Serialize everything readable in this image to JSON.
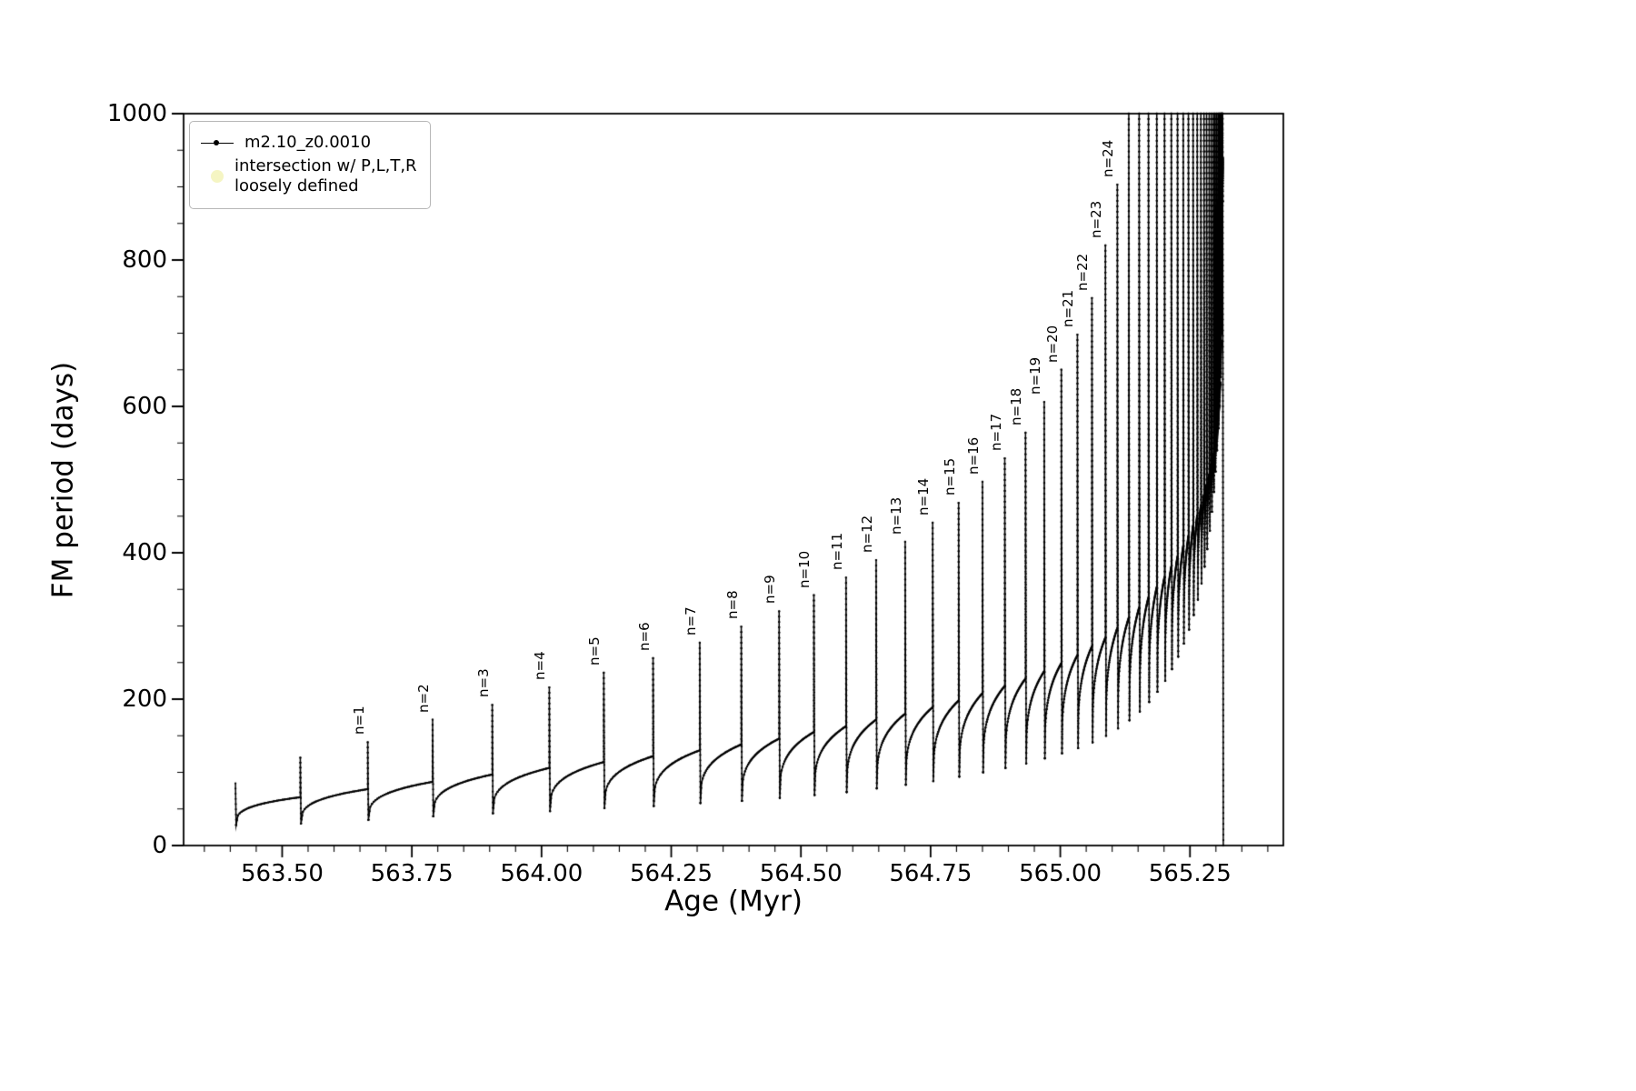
{
  "figure": {
    "background": "#ffffff",
    "axis_color": "#000000",
    "series_color": "#000000"
  },
  "legend": {
    "entries": [
      {
        "label": "m2.10_z0.0010",
        "type": "line-dot",
        "color": "#000000"
      },
      {
        "line1": "intersection w/ P,L,T,R",
        "line2": "loosely defined",
        "type": "dot",
        "color": "#f5f5c3"
      }
    ]
  },
  "chart_data": {
    "type": "line",
    "title": "",
    "xlabel": "Age (Myr)",
    "ylabel": "FM period (days)",
    "xlim": [
      563.31,
      565.43
    ],
    "ylim": [
      0,
      1000
    ],
    "grid": false,
    "legend_position": "upper left",
    "x_major_ticks": [
      563.5,
      563.75,
      564.0,
      564.25,
      564.5,
      564.75,
      565.0,
      565.25
    ],
    "x_tick_labels": [
      "563.50",
      "563.75",
      "564.00",
      "564.25",
      "564.50",
      "564.75",
      "565.00",
      "565.25"
    ],
    "x_minor_step": 0.05,
    "y_major_ticks": [
      0,
      200,
      400,
      600,
      800,
      1000
    ],
    "y_tick_labels": [
      "0",
      "200",
      "400",
      "600",
      "800",
      "1000"
    ],
    "y_minor_step": 50,
    "series_name": "m2.10_z0.0010",
    "spikes": [
      {
        "x": 563.41,
        "base": null,
        "peak": 85,
        "low": 28,
        "label": null
      },
      {
        "x": 563.535,
        "base": 66,
        "peak": 120,
        "low": 30,
        "label": null
      },
      {
        "x": 563.665,
        "base": 77,
        "peak": 141,
        "low": 35,
        "label": "n=1"
      },
      {
        "x": 563.79,
        "base": 87,
        "peak": 172,
        "low": 40,
        "label": "n=2"
      },
      {
        "x": 563.905,
        "base": 97,
        "peak": 192,
        "low": 44,
        "label": "n=3"
      },
      {
        "x": 564.015,
        "base": 106,
        "peak": 216,
        "low": 47,
        "label": "n=4"
      },
      {
        "x": 564.12,
        "base": 114,
        "peak": 236,
        "low": 51,
        "label": "n=5"
      },
      {
        "x": 564.215,
        "base": 122,
        "peak": 256,
        "low": 54,
        "label": "n=6"
      },
      {
        "x": 564.305,
        "base": 130,
        "peak": 277,
        "low": 58,
        "label": "n=7"
      },
      {
        "x": 564.385,
        "base": 138,
        "peak": 299,
        "low": 61,
        "label": "n=8"
      },
      {
        "x": 564.458,
        "base": 146,
        "peak": 320,
        "low": 65,
        "label": "n=9"
      },
      {
        "x": 564.525,
        "base": 155,
        "peak": 342,
        "low": 69,
        "label": "n=10"
      },
      {
        "x": 564.587,
        "base": 163,
        "peak": 366,
        "low": 73,
        "label": "n=11"
      },
      {
        "x": 564.645,
        "base": 172,
        "peak": 390,
        "low": 78,
        "label": "n=12"
      },
      {
        "x": 564.701,
        "base": 180,
        "peak": 415,
        "low": 83,
        "label": "n=13"
      },
      {
        "x": 564.754,
        "base": 189,
        "peak": 441,
        "low": 88,
        "label": "n=14"
      },
      {
        "x": 564.804,
        "base": 198,
        "peak": 468,
        "low": 94,
        "label": "n=15"
      },
      {
        "x": 564.85,
        "base": 208,
        "peak": 497,
        "low": 100,
        "label": "n=16"
      },
      {
        "x": 564.893,
        "base": 218,
        "peak": 529,
        "low": 106,
        "label": "n=17"
      },
      {
        "x": 564.933,
        "base": 228,
        "peak": 564,
        "low": 112,
        "label": "n=18"
      },
      {
        "x": 564.969,
        "base": 238,
        "peak": 606,
        "low": 119,
        "label": "n=19"
      },
      {
        "x": 565.002,
        "base": 249,
        "peak": 650,
        "low": 126,
        "label": "n=20"
      },
      {
        "x": 565.033,
        "base": 260,
        "peak": 698,
        "low": 133,
        "label": "n=21"
      },
      {
        "x": 565.061,
        "base": 272,
        "peak": 748,
        "low": 141,
        "label": "n=22"
      },
      {
        "x": 565.087,
        "base": 284,
        "peak": 820,
        "low": 150,
        "label": "n=23"
      },
      {
        "x": 565.11,
        "base": 297,
        "peak": 903,
        "low": 160,
        "label": "n=24"
      },
      {
        "x": 565.132,
        "base": 311,
        "peak": 1000,
        "low": 171,
        "label": null
      },
      {
        "x": 565.152,
        "base": 325,
        "peak": 1000,
        "low": 183,
        "label": null
      },
      {
        "x": 565.17,
        "base": 339,
        "peak": 1000,
        "low": 196,
        "label": null
      },
      {
        "x": 565.186,
        "base": 353,
        "peak": 1000,
        "low": 210,
        "label": null
      },
      {
        "x": 565.201,
        "base": 367,
        "peak": 1000,
        "low": 225,
        "label": null
      },
      {
        "x": 565.214,
        "base": 381,
        "peak": 1000,
        "low": 241,
        "label": null
      },
      {
        "x": 565.226,
        "base": 395,
        "peak": 1000,
        "low": 258,
        "label": null
      },
      {
        "x": 565.237,
        "base": 409,
        "peak": 1000,
        "low": 276,
        "label": null
      },
      {
        "x": 565.247,
        "base": 423,
        "peak": 1000,
        "low": 295,
        "label": null
      },
      {
        "x": 565.256,
        "base": 437,
        "peak": 1000,
        "low": 315,
        "label": null
      },
      {
        "x": 565.264,
        "base": 451,
        "peak": 1000,
        "low": 336,
        "label": null
      },
      {
        "x": 565.271,
        "base": 465,
        "peak": 1000,
        "low": 358,
        "label": null
      },
      {
        "x": 565.277,
        "base": 479,
        "peak": 1000,
        "low": 381,
        "label": null
      },
      {
        "x": 565.282,
        "base": 493,
        "peak": 1000,
        "low": 405,
        "label": null
      },
      {
        "x": 565.287,
        "base": 507,
        "peak": 1000,
        "low": 430,
        "label": null
      },
      {
        "x": 565.291,
        "base": 521,
        "peak": 1000,
        "low": 456,
        "label": null
      },
      {
        "x": 565.295,
        "base": 535,
        "peak": 1000,
        "low": 483,
        "label": null
      },
      {
        "x": 565.298,
        "base": 549,
        "peak": 1000,
        "low": 511,
        "label": null
      },
      {
        "x": 565.301,
        "base": 563,
        "peak": 1000,
        "low": 540,
        "label": null
      },
      {
        "x": 565.304,
        "base": 577,
        "peak": 1000,
        "low": 570,
        "label": null
      },
      {
        "x": 565.306,
        "base": 601,
        "peak": 1000,
        "low": 601,
        "label": null
      },
      {
        "x": 565.308,
        "base": 633,
        "peak": 1000,
        "low": 640,
        "label": null
      },
      {
        "x": 565.31,
        "base": 690,
        "peak": 1000,
        "low": 700,
        "label": null
      },
      {
        "x": 565.311,
        "base": 760,
        "peak": 1000,
        "low": 780,
        "label": null
      },
      {
        "x": 565.312,
        "base": 850,
        "peak": 1000,
        "low": 880,
        "label": null
      },
      {
        "x": 565.313,
        "base": 940,
        "peak": 1000,
        "low": 0,
        "label": null
      }
    ]
  }
}
